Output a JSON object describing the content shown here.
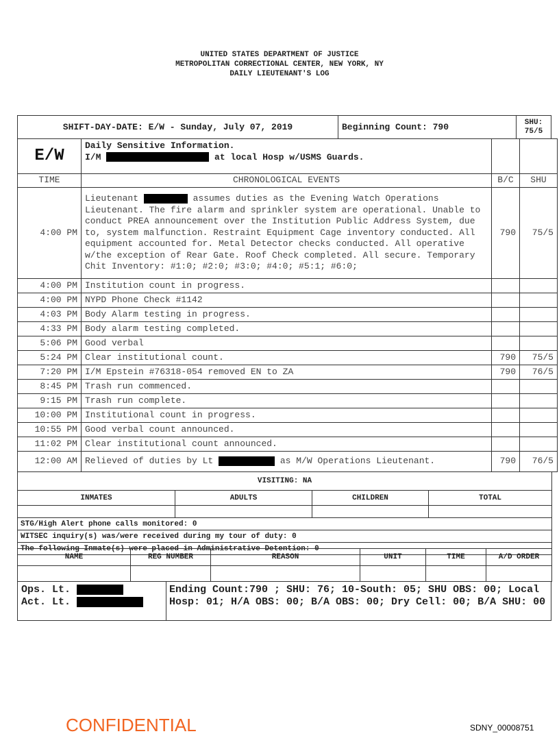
{
  "header": {
    "line1": "UNITED STATES DEPARTMENT OF JUSTICE",
    "line2": "METROPOLITAN CORRECTIONAL CENTER, NEW YORK, NY",
    "line3": "DAILY LIEUTENANT'S LOG"
  },
  "top": {
    "shift": "SHIFT-DAY-DATE: E/W - Sunday, July 07, 2019",
    "beginning": "Beginning Count: 790",
    "shu": "SHU: 75/5"
  },
  "sensitive": {
    "shift_code": "E/W",
    "title": "Daily Sensitive Information.",
    "prefix": "I/M",
    "suffix": "at local Hosp w/USMS Guards."
  },
  "columns": {
    "time": "TIME",
    "events": "CHRONOLOGICAL EVENTS",
    "bc": "B/C",
    "shu": "SHU"
  },
  "first_entry": {
    "time": "4:00 PM",
    "pre": "Lieutenant",
    "text": "assumes duties as the Evening Watch Operations Lieutenant. The fire alarm and sprinkler system are operational. Unable to conduct PREA announcement over the Institution Public Address System, due to, system malfunction. Restraint Equipment Cage inventory conducted. All equipment accounted for. Metal Detector checks conducted.  All operative w/the exception of Rear Gate.  Roof Check completed. All secure. Temporary Chit Inventory: #1:0; #2:0; #3:0; #4:0; #5:1; #6:0;",
    "bc": "790",
    "shu": "75/5"
  },
  "entries": [
    {
      "time": "4:00 PM",
      "event": "Institution count in progress.",
      "bc": "",
      "shu": ""
    },
    {
      "time": "4:00 PM",
      "event": "NYPD Phone Check #1142",
      "bc": "",
      "shu": ""
    },
    {
      "time": "4:03 PM",
      "event": "Body Alarm testing in progress.",
      "bc": "",
      "shu": ""
    },
    {
      "time": "4:33 PM",
      "event": "Body alarm testing completed.",
      "bc": "",
      "shu": ""
    },
    {
      "time": "5:06 PM",
      "event": "Good verbal",
      "bc": "",
      "shu": ""
    },
    {
      "time": "5:24 PM",
      "event": "Clear institutional count.",
      "bc": "790",
      "shu": "75/5"
    },
    {
      "time": "7:20 PM",
      "event": "I/M Epstein #76318-054 removed EN to ZA",
      "bc": "790",
      "shu": "76/5"
    },
    {
      "time": "8:45 PM",
      "event": "Trash run commenced.",
      "bc": "",
      "shu": ""
    },
    {
      "time": "9:15 PM",
      "event": "Trash run complete.",
      "bc": "",
      "shu": ""
    },
    {
      "time": "10:00 PM",
      "event": "Institutional count in progress.",
      "bc": "",
      "shu": ""
    },
    {
      "time": "10:55 PM",
      "event": "Good verbal count announced.",
      "bc": "",
      "shu": ""
    },
    {
      "time": "11:02 PM",
      "event": "Clear institutional count announced.",
      "bc": "",
      "shu": ""
    }
  ],
  "last_entry": {
    "time": "12:00 AM",
    "pre": "Relieved of duties by Lt",
    "post": "as M/W Operations Lieutenant.",
    "bc": "790",
    "shu": "76/5"
  },
  "visiting": {
    "title": "VISITING: NA",
    "headers": [
      "INMATES",
      "ADULTS",
      "CHILDREN",
      "TOTAL"
    ]
  },
  "notes": [
    "STG/High Alert phone calls monitored: 0",
    "WITSEC inquiry(s) was/were received during my tour of duty: 0",
    "The following Inmate(s) were placed in Administrative Detention: 0"
  ],
  "ad_headers": [
    "NAME",
    "REG NUMBER",
    "REASON",
    "UNIT",
    "TIME",
    "A/D ORDER"
  ],
  "footer": {
    "ops": "Ops. Lt.",
    "act": "Act. Lt.",
    "summary": "Ending Count:790 ; SHU: 76; 10-South: 05; SHU OBS: 00; Local Hosp: 01; H/A OBS: 00; B/A OBS: 00; Dry Cell: 00; B/A SHU: 00"
  },
  "stamp": "CONFIDENTIAL",
  "bates": "SDNY_00008751",
  "colors": {
    "stamp": "#f26522",
    "redaction": "#000000"
  }
}
